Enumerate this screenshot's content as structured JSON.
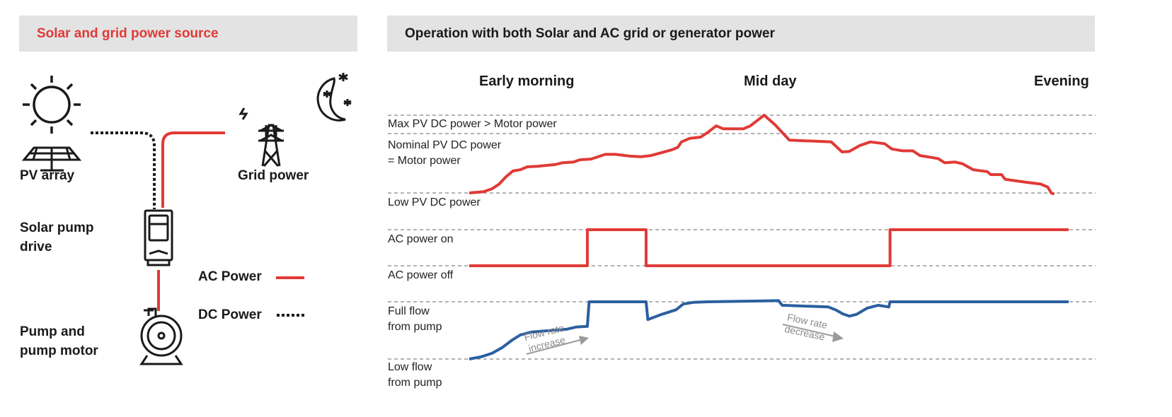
{
  "left_panel": {
    "title": "Solar and grid power source",
    "pv_label": "PV array",
    "grid_label": "Grid power",
    "drive_label": [
      "Solar pump",
      "drive"
    ],
    "pump_label": [
      "Pump and",
      "pump motor"
    ],
    "legend": {
      "ac": "AC Power",
      "dc": "DC Power"
    }
  },
  "right_panel": {
    "title": "Operation with both Solar and AC grid or generator power",
    "periods": [
      "Early morning",
      "Mid day",
      "Evening"
    ],
    "labels": {
      "max_pv": "Max PV DC power > Motor power",
      "nominal_pv": [
        "Nominal PV DC power",
        "= Motor power"
      ],
      "low_pv": "Low PV DC power",
      "ac_on": "AC power on",
      "ac_off": "AC power off",
      "full_flow": [
        "Full flow",
        "from pump"
      ],
      "low_flow": [
        "Low flow",
        "from pump"
      ]
    },
    "annotations": {
      "increase": [
        "Flow rate",
        "increase"
      ],
      "decrease": [
        "Flow rate",
        "decrease"
      ]
    }
  },
  "colors": {
    "red": "#e03a37",
    "blue": "#2b5f9f",
    "header_bg": "#e3e3e4",
    "grid": "#9a9a9a",
    "arrow": "#9a9a9a"
  },
  "chart_data": {
    "type": "line",
    "x_unit": "percent of day (0-100)",
    "series": [
      {
        "name": "PV DC power (% of nominal; 0=low, 100=nominal, 131=max)",
        "color": "red",
        "x": [
          0,
          2.4,
          3.8,
          5,
          6.1,
          7.3,
          8.5,
          9.7,
          11.5,
          14.4,
          15.6,
          17.4,
          18.5,
          20.3,
          22.7,
          24.4,
          26.8,
          28.6,
          30.3,
          32.1,
          33.9,
          34.8,
          35.4,
          36.8,
          38.6,
          39.8,
          41.2,
          42.4,
          45.7,
          46.9,
          49.2,
          51,
          53.4,
          60.4,
          62.2,
          63.4,
          65.2,
          66.9,
          69.3,
          70.5,
          72.3,
          74,
          75.2,
          78.2,
          79.3,
          81.1,
          82.3,
          84.1,
          86.4,
          87,
          88.8,
          89.4,
          92.9,
          95.3,
          96.5,
          97.1,
          97.6
        ],
        "y": [
          0,
          2,
          7,
          15,
          27,
          37,
          39,
          44,
          45,
          48,
          51,
          52,
          56,
          57,
          65,
          65,
          62,
          61,
          63,
          68,
          73,
          77,
          86,
          92,
          94,
          102,
          113,
          108,
          108,
          113,
          131,
          115,
          89,
          86,
          69,
          70,
          80,
          86,
          83,
          74,
          71,
          71,
          63,
          58,
          51,
          52,
          49,
          39,
          36,
          31,
          31,
          23,
          18,
          15,
          10,
          0,
          -2
        ]
      },
      {
        "name": "AC power (0=off, 1=on)",
        "color": "red",
        "x": [
          0,
          19.7,
          19.7,
          29.5,
          29.5,
          70.2,
          70.2,
          100
        ],
        "y": [
          0,
          0,
          1,
          1,
          0,
          0,
          1,
          1
        ]
      },
      {
        "name": "Pump flow (0=low, 1=full)",
        "color": "blue",
        "x": [
          0,
          2,
          3.8,
          5.5,
          7,
          8.5,
          10.3,
          12.6,
          16.2,
          17.9,
          19.7,
          20,
          29.5,
          29.8,
          32.1,
          34.5,
          35.7,
          37.4,
          39.8,
          51.6,
          52.2,
          59.9,
          61.1,
          62.3,
          63.4,
          64.6,
          66.4,
          68.2,
          70,
          70.2,
          100
        ],
        "y": [
          0,
          0.04,
          0.1,
          0.2,
          0.32,
          0.42,
          0.47,
          0.49,
          0.52,
          0.56,
          0.57,
          1,
          1,
          0.69,
          0.78,
          0.86,
          0.96,
          0.99,
          1,
          1.02,
          0.94,
          0.91,
          0.86,
          0.79,
          0.75,
          0.78,
          0.89,
          0.94,
          0.91,
          1,
          1
        ]
      }
    ]
  }
}
